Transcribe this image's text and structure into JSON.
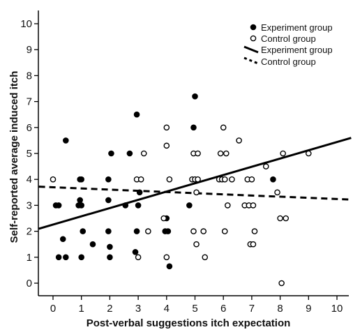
{
  "chart_data": {
    "type": "scatter",
    "xlabel": "Post-verbal suggestions itch expectation",
    "ylabel": "Self-reported average induced itch",
    "xlim": [
      -0.5,
      10.5
    ],
    "ylim": [
      -0.7,
      10.5
    ],
    "xticks": [
      "0",
      "1",
      "2",
      "3",
      "4",
      "5",
      "6",
      "7",
      "8",
      "9",
      "10"
    ],
    "yticks": [
      "0",
      "1",
      "2",
      "3",
      "4",
      "5",
      "6",
      "7",
      "8",
      "9",
      "10"
    ],
    "grid": false,
    "legend_position": "top-right",
    "legend": {
      "marker_experiment": "Experiment group",
      "marker_control": "Control group",
      "line_experiment": "Experiment group",
      "line_control": "Control group"
    },
    "series": [
      {
        "name": "Experiment group",
        "marker": "filled-circle",
        "color": "#000000",
        "points": [
          [
            0.1,
            3.0
          ],
          [
            0.2,
            3.0
          ],
          [
            0.2,
            1.0
          ],
          [
            0.35,
            1.7
          ],
          [
            0.45,
            1.0
          ],
          [
            0.45,
            5.5
          ],
          [
            0.9,
            3.0
          ],
          [
            0.95,
            3.2
          ],
          [
            0.95,
            4.0
          ],
          [
            1.0,
            4.0
          ],
          [
            1.0,
            3.0
          ],
          [
            1.0,
            1.0
          ],
          [
            1.05,
            2.0
          ],
          [
            1.4,
            1.5
          ],
          [
            1.95,
            2.0
          ],
          [
            1.95,
            3.2
          ],
          [
            1.95,
            4.0
          ],
          [
            2.0,
            1.4
          ],
          [
            2.0,
            1.0
          ],
          [
            2.05,
            5.0
          ],
          [
            2.55,
            3.0
          ],
          [
            2.7,
            5.0
          ],
          [
            2.9,
            1.2
          ],
          [
            2.95,
            2.0
          ],
          [
            2.95,
            6.5
          ],
          [
            3.0,
            3.0
          ],
          [
            3.05,
            3.5
          ],
          [
            3.95,
            2.0
          ],
          [
            4.0,
            2.5
          ],
          [
            4.05,
            2.0
          ],
          [
            4.1,
            0.65
          ],
          [
            4.8,
            3.0
          ],
          [
            4.95,
            6.0
          ],
          [
            5.0,
            7.2
          ],
          [
            7.75,
            4.0
          ]
        ]
      },
      {
        "name": "Control group",
        "marker": "open-circle",
        "color": "#000000",
        "points": [
          [
            0.0,
            4.0
          ],
          [
            2.95,
            4.0
          ],
          [
            3.0,
            1.0
          ],
          [
            3.1,
            4.0
          ],
          [
            3.2,
            5.0
          ],
          [
            3.35,
            2.0
          ],
          [
            3.9,
            2.5
          ],
          [
            4.0,
            1.0
          ],
          [
            4.0,
            5.3
          ],
          [
            4.0,
            6.0
          ],
          [
            4.1,
            4.0
          ],
          [
            4.9,
            4.0
          ],
          [
            4.95,
            2.0
          ],
          [
            4.95,
            5.0
          ],
          [
            5.0,
            4.0
          ],
          [
            5.05,
            3.5
          ],
          [
            5.05,
            1.5
          ],
          [
            5.1,
            4.0
          ],
          [
            5.1,
            5.0
          ],
          [
            5.3,
            2.0
          ],
          [
            5.35,
            1.0
          ],
          [
            5.85,
            4.0
          ],
          [
            5.9,
            5.0
          ],
          [
            5.95,
            4.0
          ],
          [
            6.0,
            6.0
          ],
          [
            6.05,
            4.0
          ],
          [
            6.05,
            2.0
          ],
          [
            6.1,
            5.0
          ],
          [
            6.15,
            3.0
          ],
          [
            6.3,
            4.0
          ],
          [
            6.55,
            5.5
          ],
          [
            6.75,
            3.0
          ],
          [
            6.85,
            4.0
          ],
          [
            6.9,
            3.0
          ],
          [
            6.95,
            1.5
          ],
          [
            7.0,
            4.0
          ],
          [
            7.05,
            3.0
          ],
          [
            7.05,
            1.5
          ],
          [
            7.1,
            2.0
          ],
          [
            7.5,
            4.5
          ],
          [
            7.9,
            3.5
          ],
          [
            8.0,
            2.5
          ],
          [
            8.05,
            0.0
          ],
          [
            8.1,
            5.0
          ],
          [
            8.2,
            2.5
          ],
          [
            9.0,
            5.0
          ]
        ]
      }
    ],
    "fit_lines": [
      {
        "name": "Experiment group",
        "style": "solid",
        "x": [
          -0.5,
          10.5
        ],
        "y": [
          2.1,
          5.6
        ]
      },
      {
        "name": "Control group",
        "style": "dashed",
        "x": [
          -0.5,
          10.5
        ],
        "y": [
          3.72,
          3.22
        ]
      }
    ]
  }
}
